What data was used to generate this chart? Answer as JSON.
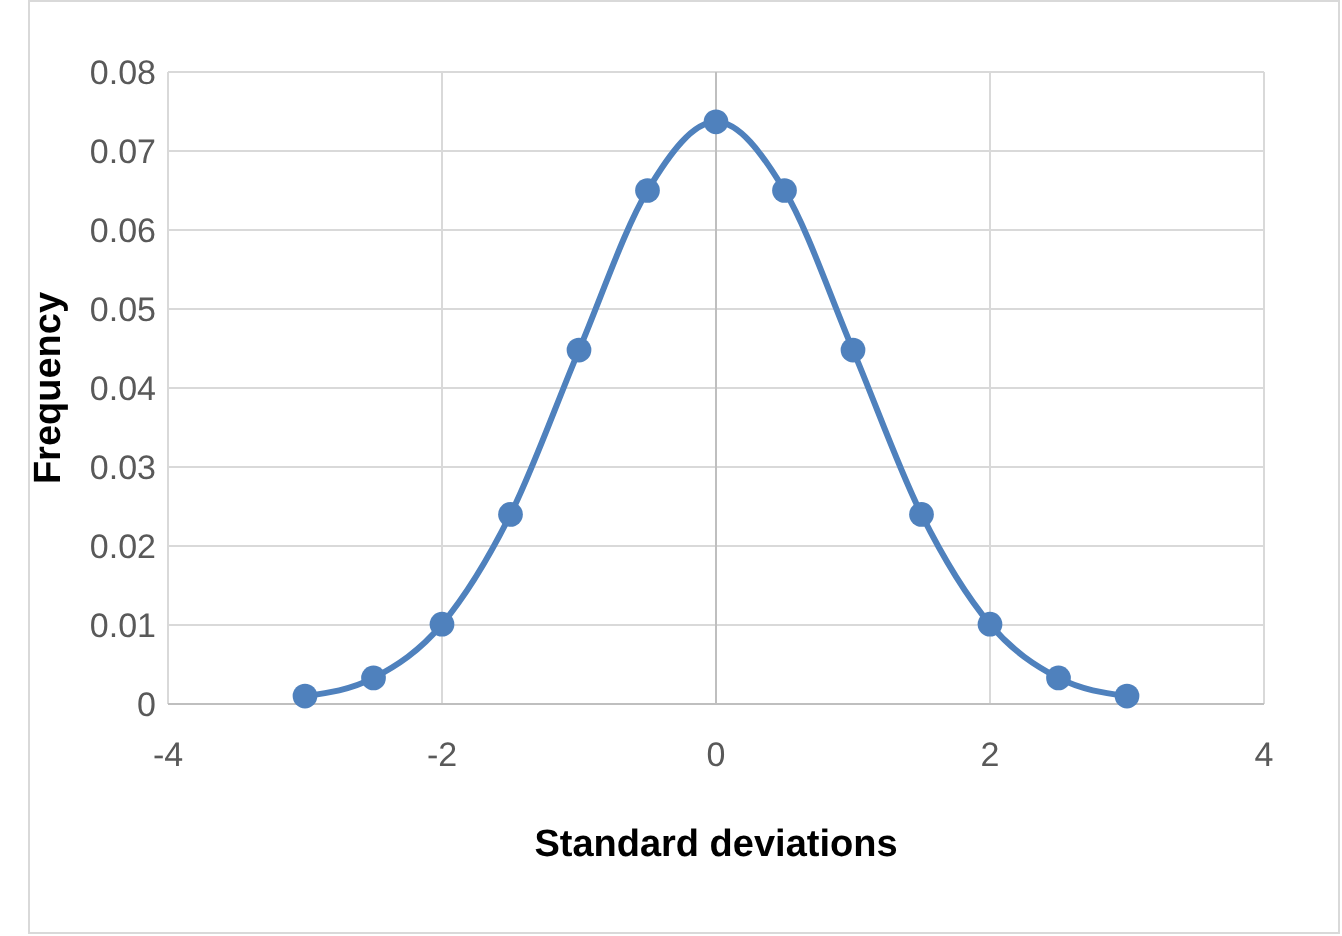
{
  "chart_data": {
    "type": "line",
    "xlabel": "Standard deviations",
    "ylabel": "Frequency",
    "x": [
      -3,
      -2.5,
      -2,
      -1.5,
      -1,
      -0.5,
      0,
      0.5,
      1,
      1.5,
      2,
      2.5,
      3
    ],
    "series": [
      {
        "color": "#4f81bd",
        "values": [
          0.001,
          0.0033,
          0.0101,
          0.024,
          0.0448,
          0.065,
          0.0737,
          0.065,
          0.0448,
          0.024,
          0.0101,
          0.0033,
          0.001
        ]
      }
    ],
    "xlim": [
      -4,
      4
    ],
    "xticks": [
      -4,
      -2,
      0,
      2,
      4
    ],
    "ylim": [
      0,
      0.08
    ],
    "yticks": [
      0,
      0.01,
      0.02,
      0.03,
      0.04,
      0.05,
      0.06,
      0.07,
      0.08
    ],
    "grid": true,
    "marker": "circle",
    "line_style": "solid"
  }
}
